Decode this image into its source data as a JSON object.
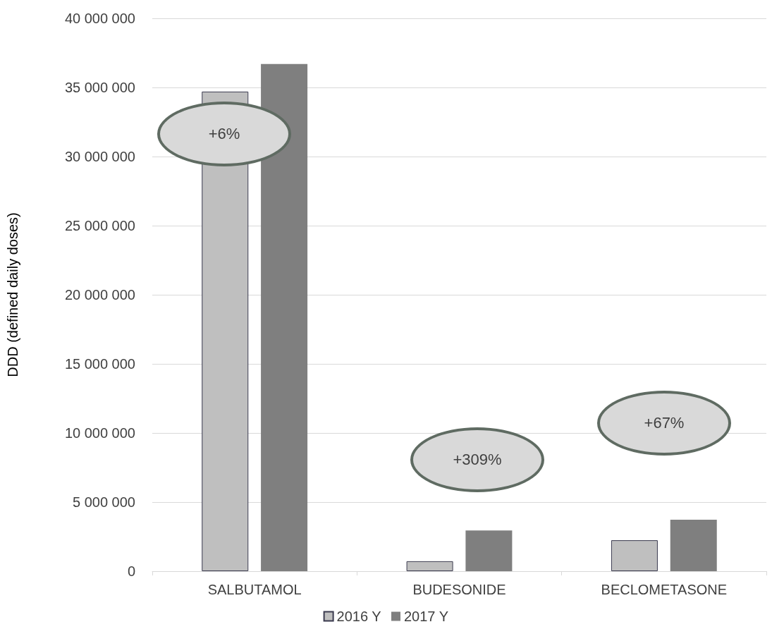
{
  "chart_data": {
    "type": "bar",
    "ylabel": "DDD (defined daily doses)",
    "categories": [
      "SALBUTAMOL",
      "BUDESONIDE",
      "BECLOMETASONE"
    ],
    "series": [
      {
        "name": "2016 Y",
        "color": "#bfbfbf",
        "values": [
          34700000,
          720000,
          2240000
        ]
      },
      {
        "name": "2017 Y",
        "color": "#7f7f7f",
        "values": [
          36700000,
          2950000,
          3720000
        ]
      }
    ],
    "ylim": [
      0,
      40000000
    ],
    "yticks": [
      {
        "value": 0,
        "label": "0"
      },
      {
        "value": 5000000,
        "label": "5 000 000"
      },
      {
        "value": 10000000,
        "label": "10 000 000"
      },
      {
        "value": 15000000,
        "label": "15 000 000"
      },
      {
        "value": 20000000,
        "label": "20 000 000"
      },
      {
        "value": 25000000,
        "label": "25 000 000"
      },
      {
        "value": 30000000,
        "label": "30 000 000"
      },
      {
        "value": 35000000,
        "label": "35 000 000"
      },
      {
        "value": 40000000,
        "label": "40 000 000"
      }
    ],
    "annotations": [
      "+6%",
      "+309%",
      "+67%"
    ],
    "grid": "y",
    "legend": "bottom"
  }
}
